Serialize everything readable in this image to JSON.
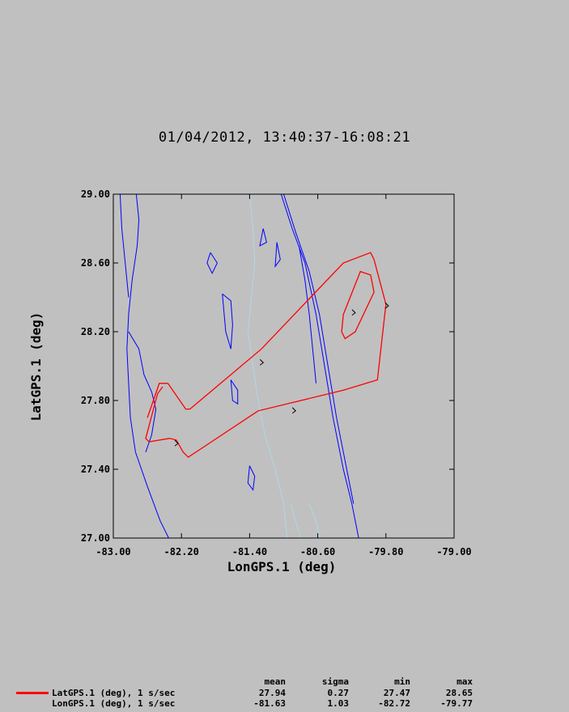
{
  "title": "01/04/2012, 13:40:37-16:08:21",
  "chart_data": {
    "type": "line",
    "title": "01/04/2012, 13:40:37-16:08:21",
    "xlabel": "LonGPS.1 (deg)",
    "ylabel": "LatGPS.1 (deg)",
    "xlim": [
      -83.0,
      -79.0
    ],
    "ylim": [
      27.0,
      29.0
    ],
    "x_ticks": [
      "-83.00",
      "-82.20",
      "-81.40",
      "-80.60",
      "-79.80",
      "-79.00"
    ],
    "y_ticks": [
      "27.00",
      "27.40",
      "27.80",
      "28.20",
      "28.60",
      "29.00"
    ],
    "series": [
      {
        "color": "#ff0000",
        "points": [
          [
            -82.6,
            27.7
          ],
          [
            -82.46,
            27.9
          ],
          [
            -82.36,
            27.9
          ],
          [
            -82.15,
            27.75
          ],
          [
            -82.1,
            27.75
          ],
          [
            -81.26,
            28.1
          ],
          [
            -80.3,
            28.6
          ],
          [
            -79.98,
            28.66
          ],
          [
            -79.94,
            28.62
          ],
          [
            -79.8,
            28.36
          ],
          [
            -79.9,
            27.92
          ],
          [
            -80.3,
            27.86
          ],
          [
            -81.3,
            27.74
          ],
          [
            -82.12,
            27.47
          ],
          [
            -82.18,
            27.5
          ],
          [
            -82.26,
            27.57
          ],
          [
            -82.34,
            27.58
          ],
          [
            -82.58,
            27.56
          ],
          [
            -82.62,
            27.58
          ],
          [
            -82.48,
            27.84
          ],
          [
            -82.42,
            27.88
          ]
        ]
      },
      {
        "color": "#ff0000",
        "points": [
          [
            -80.3,
            28.3
          ],
          [
            -80.1,
            28.55
          ],
          [
            -79.98,
            28.53
          ],
          [
            -79.94,
            28.43
          ],
          [
            -80.16,
            28.2
          ],
          [
            -80.28,
            28.16
          ],
          [
            -80.32,
            28.2
          ],
          [
            -80.3,
            28.3
          ]
        ]
      }
    ],
    "arrows": [
      {
        "x": -79.77,
        "y": 28.35,
        "color": "#000000"
      },
      {
        "x": -81.24,
        "y": 28.02,
        "color": "#000000"
      },
      {
        "x": -80.86,
        "y": 27.74,
        "color": "#000000"
      },
      {
        "x": -80.16,
        "y": 28.31,
        "color": "#000000"
      },
      {
        "x": -82.24,
        "y": 27.55,
        "color": "#000000"
      }
    ],
    "map_lines": [
      {
        "color": "#0000ff",
        "points": [
          [
            -82.73,
            29.0
          ],
          [
            -82.7,
            28.85
          ],
          [
            -82.72,
            28.7
          ],
          [
            -82.78,
            28.5
          ],
          [
            -82.82,
            28.3
          ],
          [
            -82.84,
            28.1
          ],
          [
            -82.82,
            27.9
          ],
          [
            -82.8,
            27.7
          ],
          [
            -82.74,
            27.5
          ],
          [
            -82.6,
            27.3
          ],
          [
            -82.45,
            27.1
          ],
          [
            -82.35,
            27.0
          ]
        ]
      },
      {
        "color": "#0000ff",
        "points": [
          [
            -82.82,
            28.2
          ],
          [
            -82.7,
            28.1
          ],
          [
            -82.64,
            27.95
          ],
          [
            -82.55,
            27.85
          ],
          [
            -82.5,
            27.75
          ],
          [
            -82.55,
            27.6
          ],
          [
            -82.62,
            27.5
          ]
        ]
      },
      {
        "color": "#0000ff",
        "points": [
          [
            -81.03,
            29.0
          ],
          [
            -80.9,
            28.8
          ],
          [
            -80.75,
            28.6
          ],
          [
            -80.62,
            28.3
          ],
          [
            -80.52,
            28.0
          ],
          [
            -80.42,
            27.7
          ],
          [
            -80.3,
            27.4
          ],
          [
            -80.2,
            27.2
          ],
          [
            -80.12,
            27.0
          ]
        ]
      },
      {
        "color": "#0000ff",
        "points": [
          [
            -81.0,
            29.0
          ],
          [
            -80.86,
            28.78
          ],
          [
            -80.7,
            28.55
          ],
          [
            -80.58,
            28.3
          ],
          [
            -80.48,
            28.0
          ],
          [
            -80.38,
            27.7
          ],
          [
            -80.26,
            27.4
          ],
          [
            -80.18,
            27.2
          ]
        ]
      },
      {
        "color": "#0000ff",
        "points": [
          [
            -80.82,
            28.7
          ],
          [
            -80.75,
            28.5
          ],
          [
            -80.7,
            28.3
          ],
          [
            -80.66,
            28.1
          ],
          [
            -80.62,
            27.9
          ]
        ]
      },
      {
        "color": "#0000ff",
        "points": [
          [
            -81.72,
            28.42
          ],
          [
            -81.62,
            28.38
          ],
          [
            -81.6,
            28.24
          ],
          [
            -81.62,
            28.1
          ],
          [
            -81.68,
            28.2
          ],
          [
            -81.72,
            28.42
          ]
        ]
      },
      {
        "color": "#0000ff",
        "points": [
          [
            -81.62,
            27.92
          ],
          [
            -81.54,
            27.86
          ],
          [
            -81.54,
            27.78
          ],
          [
            -81.6,
            27.8
          ],
          [
            -81.62,
            27.92
          ]
        ]
      },
      {
        "color": "#0000ff",
        "points": [
          [
            -81.24,
            28.8
          ],
          [
            -81.2,
            28.72
          ],
          [
            -81.28,
            28.7
          ],
          [
            -81.24,
            28.8
          ]
        ]
      },
      {
        "color": "#0000ff",
        "points": [
          [
            -81.86,
            28.66
          ],
          [
            -81.78,
            28.6
          ],
          [
            -81.84,
            28.54
          ],
          [
            -81.9,
            28.6
          ],
          [
            -81.86,
            28.66
          ]
        ]
      },
      {
        "color": "#0000ff",
        "points": [
          [
            -81.08,
            28.72
          ],
          [
            -81.04,
            28.62
          ],
          [
            -81.1,
            28.58
          ],
          [
            -81.08,
            28.72
          ]
        ]
      },
      {
        "color": "#0000ff",
        "points": [
          [
            -81.4,
            27.42
          ],
          [
            -81.34,
            27.36
          ],
          [
            -81.36,
            27.28
          ],
          [
            -81.42,
            27.32
          ],
          [
            -81.4,
            27.42
          ]
        ]
      },
      {
        "color": "#0000ff",
        "points": [
          [
            -82.92,
            29.0
          ],
          [
            -82.9,
            28.8
          ],
          [
            -82.86,
            28.6
          ],
          [
            -82.82,
            28.4
          ]
        ]
      },
      {
        "color": "#add8e6",
        "points": [
          [
            -81.4,
            29.0
          ],
          [
            -81.36,
            28.8
          ],
          [
            -81.34,
            28.6
          ],
          [
            -81.38,
            28.4
          ],
          [
            -81.42,
            28.2
          ],
          [
            -81.36,
            28.0
          ],
          [
            -81.3,
            27.8
          ],
          [
            -81.22,
            27.6
          ],
          [
            -81.1,
            27.4
          ],
          [
            -81.0,
            27.2
          ],
          [
            -80.96,
            27.0
          ]
        ]
      },
      {
        "color": "#add8e6",
        "points": [
          [
            -80.92,
            27.2
          ],
          [
            -80.86,
            27.1
          ],
          [
            -80.8,
            27.0
          ]
        ]
      },
      {
        "color": "#add8e6",
        "points": [
          [
            -80.7,
            27.2
          ],
          [
            -80.62,
            27.1
          ],
          [
            -80.58,
            27.0
          ]
        ]
      }
    ]
  },
  "stats": {
    "headers": [
      "mean",
      "sigma",
      "min",
      "max"
    ],
    "rows": [
      {
        "label": "LatGPS.1 (deg), 1 s/sec",
        "values": [
          "27.94",
          "0.27",
          "27.47",
          "28.65"
        ]
      },
      {
        "label": "LonGPS.1 (deg), 1 s/sec",
        "values": [
          "-81.63",
          "1.03",
          "-82.72",
          "-79.77"
        ]
      }
    ],
    "legend_color": "#ff0000"
  }
}
